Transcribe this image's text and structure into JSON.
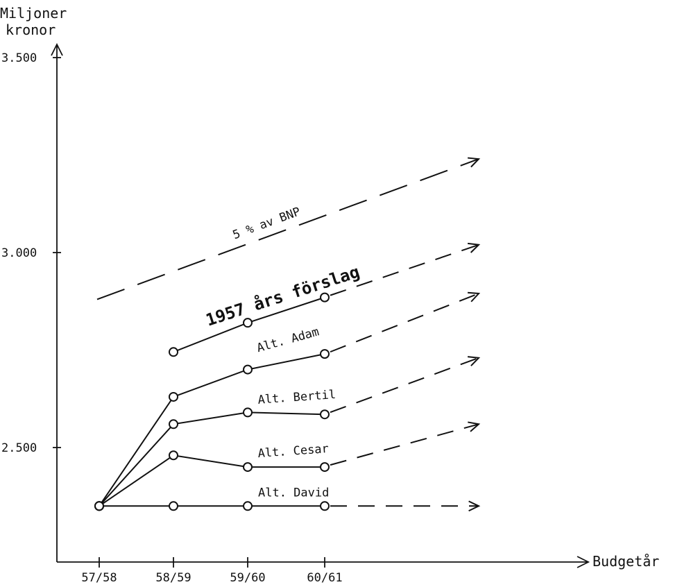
{
  "chart_data": {
    "type": "line",
    "ylabel_line1": "Miljoner",
    "ylabel_line2": "kronor",
    "xlabel": "Budgetår",
    "categories": [
      "57/58",
      "58/59",
      "59/60",
      "60/61"
    ],
    "yticks": [
      {
        "value": 2500,
        "label": "2.500"
      },
      {
        "value": 3000,
        "label": "3.000"
      },
      {
        "value": 3500,
        "label": "3.500"
      }
    ],
    "ylim": [
      2200,
      3500
    ],
    "series": [
      {
        "name": "1957 års förslag",
        "values": [
          null,
          2745,
          2820,
          2885
        ],
        "projection_end": 3020,
        "line_style": "thick"
      },
      {
        "name": "Alt. Adam",
        "values": [
          2350,
          2630,
          2700,
          2740
        ],
        "projection_end": 2895
      },
      {
        "name": "Alt. Bertil",
        "values": [
          2350,
          2560,
          2590,
          2585
        ],
        "projection_end": 2730
      },
      {
        "name": "Alt. Cesar",
        "values": [
          2350,
          2480,
          2450,
          2450
        ],
        "projection_end": 2560
      },
      {
        "name": "Alt. David",
        "values": [
          2350,
          2350,
          2350,
          2350
        ],
        "projection_end": 2350
      }
    ],
    "reference_line": {
      "name": "5 % av BNP",
      "start_value": 2880,
      "end_value": 3240
    }
  }
}
